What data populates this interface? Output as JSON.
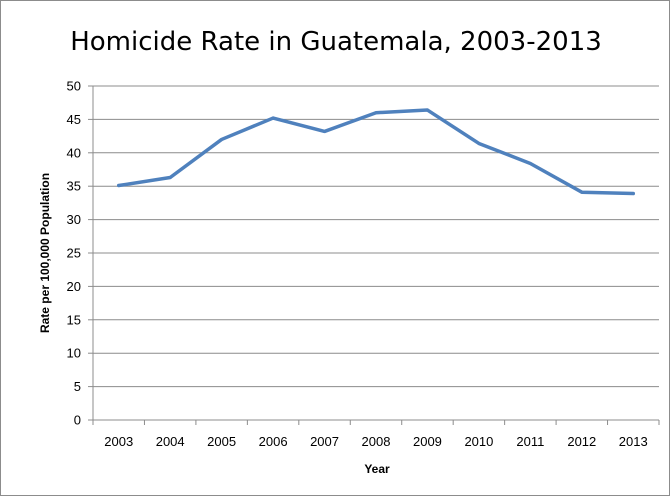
{
  "chart_data": {
    "type": "line",
    "title": "Homicide Rate in Guatemala, 2003-2013",
    "xlabel": "Year",
    "ylabel": "Rate per 100,000 Population",
    "categories": [
      "2003",
      "2004",
      "2005",
      "2006",
      "2007",
      "2008",
      "2009",
      "2010",
      "2011",
      "2012",
      "2013"
    ],
    "series": [
      {
        "values": [
          35.1,
          36.3,
          42.0,
          45.2,
          43.2,
          46.0,
          46.4,
          41.4,
          38.4,
          34.1,
          33.9
        ],
        "color": "#4f81bd"
      }
    ],
    "ylim": [
      0,
      50
    ],
    "yticks": [
      0,
      5,
      10,
      15,
      20,
      25,
      30,
      35,
      40,
      45,
      50
    ],
    "grid": "horizontal",
    "legend": "none"
  }
}
